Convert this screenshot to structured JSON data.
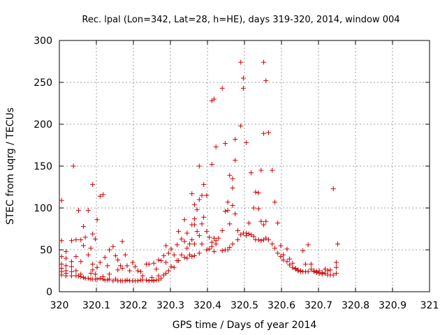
{
  "chart_data": {
    "type": "scatter",
    "title": "Rec. lpal (Lon=342, Lat=28, h=HE), days 319-320, 2014, window 004",
    "xlabel": "GPS time / Days of year 2014",
    "ylabel": "STEC from uqrg / TECUs",
    "xlim": [
      320,
      321
    ],
    "ylim": [
      0,
      300
    ],
    "xticks": [
      "320",
      "320.1",
      "320.2",
      "320.3",
      "320.4",
      "320.5",
      "320.6",
      "320.7",
      "320.8",
      "320.9",
      "321"
    ],
    "yticks": [
      "0",
      "50",
      "100",
      "150",
      "200",
      "250",
      "300"
    ],
    "grid": true,
    "marker": "+",
    "color": "#cc0000",
    "points": [
      [
        320.006,
        109
      ],
      [
        320.006,
        61
      ],
      [
        320.006,
        42
      ],
      [
        320.006,
        33
      ],
      [
        320.006,
        28
      ],
      [
        320.006,
        24
      ],
      [
        320.006,
        20
      ],
      [
        320.018,
        48
      ],
      [
        320.018,
        40
      ],
      [
        320.018,
        31
      ],
      [
        320.018,
        25
      ],
      [
        320.018,
        22
      ],
      [
        320.018,
        19
      ],
      [
        320.033,
        61
      ],
      [
        320.033,
        36
      ],
      [
        320.033,
        30
      ],
      [
        320.033,
        24
      ],
      [
        320.033,
        19
      ],
      [
        320.038,
        150
      ],
      [
        320.045,
        62
      ],
      [
        320.045,
        42
      ],
      [
        320.045,
        25
      ],
      [
        320.045,
        19
      ],
      [
        320.052,
        97
      ],
      [
        320.052,
        19
      ],
      [
        320.058,
        62
      ],
      [
        320.058,
        36
      ],
      [
        320.058,
        21
      ],
      [
        320.058,
        18
      ],
      [
        320.065,
        78
      ],
      [
        320.065,
        55
      ],
      [
        320.065,
        17
      ],
      [
        320.07,
        65
      ],
      [
        320.07,
        16
      ],
      [
        320.078,
        97
      ],
      [
        320.078,
        44
      ],
      [
        320.078,
        16
      ],
      [
        320.085,
        52
      ],
      [
        320.085,
        22
      ],
      [
        320.085,
        15
      ],
      [
        320.09,
        128
      ],
      [
        320.09,
        69
      ],
      [
        320.09,
        33
      ],
      [
        320.09,
        26
      ],
      [
        320.09,
        15
      ],
      [
        320.097,
        63
      ],
      [
        320.097,
        21
      ],
      [
        320.097,
        15
      ],
      [
        320.102,
        86
      ],
      [
        320.102,
        29
      ],
      [
        320.102,
        15
      ],
      [
        320.11,
        114
      ],
      [
        320.11,
        35
      ],
      [
        320.11,
        16
      ],
      [
        320.118,
        116
      ],
      [
        320.118,
        18
      ],
      [
        320.118,
        15
      ],
      [
        320.123,
        41
      ],
      [
        320.123,
        14
      ],
      [
        320.13,
        31
      ],
      [
        320.13,
        14
      ],
      [
        320.135,
        50
      ],
      [
        320.135,
        21
      ],
      [
        320.135,
        15
      ],
      [
        320.145,
        54
      ],
      [
        320.145,
        13
      ],
      [
        320.152,
        43
      ],
      [
        320.152,
        15
      ],
      [
        320.158,
        38
      ],
      [
        320.158,
        26
      ],
      [
        320.158,
        13
      ],
      [
        320.165,
        31
      ],
      [
        320.165,
        13
      ],
      [
        320.17,
        60
      ],
      [
        320.17,
        28
      ],
      [
        320.17,
        13
      ],
      [
        320.178,
        44
      ],
      [
        320.178,
        13
      ],
      [
        320.183,
        31
      ],
      [
        320.183,
        14
      ],
      [
        320.19,
        25
      ],
      [
        320.19,
        13
      ],
      [
        320.198,
        35
      ],
      [
        320.198,
        13
      ],
      [
        320.205,
        30
      ],
      [
        320.205,
        13
      ],
      [
        320.212,
        25
      ],
      [
        320.212,
        13
      ],
      [
        320.22,
        24
      ],
      [
        320.22,
        14
      ],
      [
        320.225,
        19
      ],
      [
        320.225,
        14
      ],
      [
        320.235,
        33
      ],
      [
        320.235,
        14
      ],
      [
        320.242,
        33
      ],
      [
        320.242,
        13
      ],
      [
        320.25,
        17
      ],
      [
        320.25,
        14
      ],
      [
        320.255,
        34
      ],
      [
        320.255,
        13
      ],
      [
        320.262,
        27
      ],
      [
        320.262,
        14
      ],
      [
        320.268,
        38
      ],
      [
        320.268,
        19
      ],
      [
        320.268,
        14
      ],
      [
        320.275,
        37
      ],
      [
        320.275,
        16
      ],
      [
        320.282,
        43
      ],
      [
        320.282,
        20
      ],
      [
        320.288,
        55
      ],
      [
        320.288,
        35
      ],
      [
        320.288,
        22
      ],
      [
        320.295,
        46
      ],
      [
        320.295,
        25
      ],
      [
        320.302,
        51
      ],
      [
        320.302,
        30
      ],
      [
        320.31,
        44
      ],
      [
        320.31,
        29
      ],
      [
        320.318,
        56
      ],
      [
        320.318,
        37
      ],
      [
        320.322,
        72
      ],
      [
        320.322,
        37
      ],
      [
        320.33,
        63
      ],
      [
        320.33,
        44
      ],
      [
        320.338,
        86
      ],
      [
        320.338,
        60
      ],
      [
        320.338,
        41
      ],
      [
        320.345,
        70
      ],
      [
        320.345,
        52
      ],
      [
        320.345,
        40
      ],
      [
        320.352,
        57
      ],
      [
        320.352,
        44
      ],
      [
        320.358,
        117
      ],
      [
        320.358,
        80
      ],
      [
        320.358,
        62
      ],
      [
        320.358,
        42
      ],
      [
        320.365,
        104
      ],
      [
        320.365,
        87
      ],
      [
        320.365,
        80
      ],
      [
        320.365,
        57
      ],
      [
        320.365,
        43
      ],
      [
        320.372,
        98
      ],
      [
        320.372,
        72
      ],
      [
        320.378,
        150
      ],
      [
        320.378,
        110
      ],
      [
        320.378,
        67
      ],
      [
        320.378,
        46
      ],
      [
        320.385,
        115
      ],
      [
        320.385,
        81
      ],
      [
        320.385,
        57
      ],
      [
        320.39,
        128
      ],
      [
        320.39,
        89
      ],
      [
        320.398,
        115
      ],
      [
        320.398,
        72
      ],
      [
        320.398,
        50
      ],
      [
        320.405,
        65
      ],
      [
        320.405,
        51
      ],
      [
        320.412,
        152
      ],
      [
        320.412,
        228
      ],
      [
        320.412,
        59
      ],
      [
        320.412,
        54
      ],
      [
        320.418,
        230
      ],
      [
        320.418,
        64
      ],
      [
        320.418,
        48
      ],
      [
        320.423,
        173
      ],
      [
        320.423,
        61
      ],
      [
        320.423,
        57
      ],
      [
        320.43,
        64
      ],
      [
        320.44,
        243
      ],
      [
        320.44,
        73
      ],
      [
        320.44,
        49
      ],
      [
        320.448,
        177
      ],
      [
        320.448,
        96
      ],
      [
        320.448,
        50
      ],
      [
        320.455,
        107
      ],
      [
        320.455,
        97
      ],
      [
        320.455,
        50
      ],
      [
        320.46,
        139
      ],
      [
        320.46,
        81
      ],
      [
        320.46,
        53
      ],
      [
        320.468,
        135
      ],
      [
        320.468,
        124
      ],
      [
        320.468,
        103
      ],
      [
        320.468,
        57
      ],
      [
        320.475,
        182
      ],
      [
        320.475,
        157
      ],
      [
        320.475,
        93
      ],
      [
        320.482,
        73
      ],
      [
        320.482,
        62
      ],
      [
        320.49,
        274
      ],
      [
        320.49,
        198
      ],
      [
        320.49,
        68
      ],
      [
        320.497,
        255
      ],
      [
        320.497,
        243
      ],
      [
        320.497,
        70
      ],
      [
        320.505,
        178
      ],
      [
        320.505,
        70
      ],
      [
        320.505,
        67
      ],
      [
        320.512,
        82
      ],
      [
        320.512,
        69
      ],
      [
        320.518,
        142
      ],
      [
        320.518,
        68
      ],
      [
        320.525,
        100
      ],
      [
        320.525,
        66
      ],
      [
        320.53,
        119
      ],
      [
        320.53,
        62
      ],
      [
        320.538,
        118
      ],
      [
        320.538,
        99
      ],
      [
        320.538,
        62
      ],
      [
        320.545,
        145
      ],
      [
        320.545,
        84
      ],
      [
        320.545,
        61
      ],
      [
        320.552,
        274
      ],
      [
        320.552,
        189
      ],
      [
        320.552,
        80
      ],
      [
        320.552,
        62
      ],
      [
        320.558,
        252
      ],
      [
        320.558,
        84
      ],
      [
        320.558,
        64
      ],
      [
        320.565,
        190
      ],
      [
        320.565,
        62
      ],
      [
        320.575,
        145
      ],
      [
        320.575,
        57
      ],
      [
        320.582,
        107
      ],
      [
        320.582,
        52
      ],
      [
        320.59,
        82
      ],
      [
        320.59,
        46
      ],
      [
        320.598,
        55
      ],
      [
        320.598,
        42
      ],
      [
        320.605,
        44
      ],
      [
        320.605,
        38
      ],
      [
        320.615,
        51
      ],
      [
        320.615,
        36
      ],
      [
        320.622,
        39
      ],
      [
        320.622,
        32
      ],
      [
        320.63,
        34
      ],
      [
        320.63,
        29
      ],
      [
        320.638,
        28
      ],
      [
        320.638,
        27
      ],
      [
        320.645,
        26
      ],
      [
        320.645,
        25
      ],
      [
        320.652,
        25
      ],
      [
        320.652,
        24
      ],
      [
        320.658,
        49
      ],
      [
        320.658,
        24
      ],
      [
        320.665,
        33
      ],
      [
        320.665,
        24
      ],
      [
        320.672,
        56
      ],
      [
        320.672,
        24
      ],
      [
        320.68,
        33
      ],
      [
        320.68,
        27
      ],
      [
        320.688,
        25
      ],
      [
        320.688,
        24
      ],
      [
        320.695,
        24
      ],
      [
        320.695,
        23
      ],
      [
        320.702,
        25
      ],
      [
        320.702,
        22
      ],
      [
        320.71,
        23
      ],
      [
        320.71,
        21
      ],
      [
        320.718,
        27
      ],
      [
        320.718,
        22
      ],
      [
        320.725,
        25
      ],
      [
        320.725,
        20
      ],
      [
        320.732,
        26
      ],
      [
        320.732,
        20
      ],
      [
        320.74,
        123
      ],
      [
        320.74,
        20
      ],
      [
        320.748,
        35
      ],
      [
        320.748,
        29
      ],
      [
        320.748,
        22
      ],
      [
        320.752,
        57
      ]
    ]
  }
}
